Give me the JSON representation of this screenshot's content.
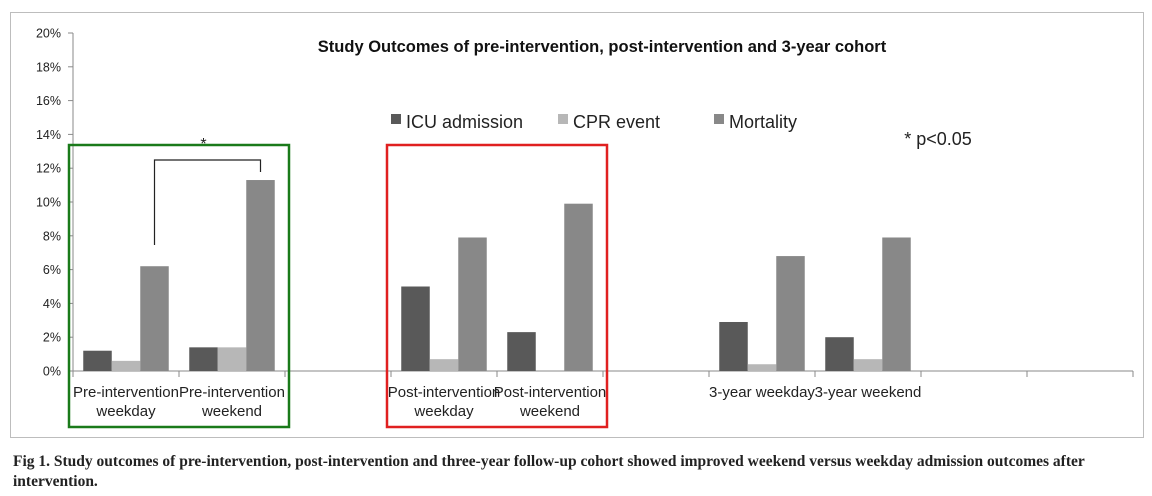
{
  "chart_data": {
    "type": "bar",
    "title": "Study Outcomes of pre-intervention, post-intervention and 3-year cohort",
    "xlabel": "",
    "ylabel": "",
    "ylim": [
      0,
      20
    ],
    "yticks": [
      0,
      2,
      4,
      6,
      8,
      10,
      12,
      14,
      16,
      18,
      20
    ],
    "ytick_labels": [
      "0%",
      "2%",
      "4%",
      "6%",
      "8%",
      "10%",
      "12%",
      "14%",
      "16%",
      "18%",
      "20%"
    ],
    "categories": [
      [
        "Pre-intervention",
        "weekday"
      ],
      [
        "Pre-intervention",
        "weekend"
      ],
      [
        "Post-intervention",
        "weekday"
      ],
      [
        "Post-intervention",
        "weekend"
      ],
      [
        "3-year weekday"
      ],
      [
        "3-year weekend"
      ]
    ],
    "series": [
      {
        "name": "ICU admission",
        "color": "#595959",
        "values": [
          1.2,
          1.4,
          5.0,
          2.3,
          2.9,
          2.0
        ]
      },
      {
        "name": "CPR event",
        "color": "#b7b7b7",
        "values": [
          0.6,
          1.4,
          0.7,
          0.0,
          0.4,
          0.7
        ]
      },
      {
        "name": "Mortality",
        "color": "#888888",
        "values": [
          6.2,
          11.3,
          7.9,
          9.9,
          6.8,
          7.9
        ]
      }
    ],
    "grid": false,
    "legend_position": "top-center",
    "annotations": {
      "significance_marker": "*",
      "significance_note": "* p<0.05"
    },
    "highlight_boxes": [
      {
        "color": "#1a7a1a",
        "groups": "Pre-intervention"
      },
      {
        "color": "#e02020",
        "groups": "Post-intervention"
      }
    ]
  },
  "caption": "Fig 1. Study outcomes of pre-intervention, post-intervention and three-year follow-up cohort showed improved weekend versus weekday admission outcomes after intervention."
}
